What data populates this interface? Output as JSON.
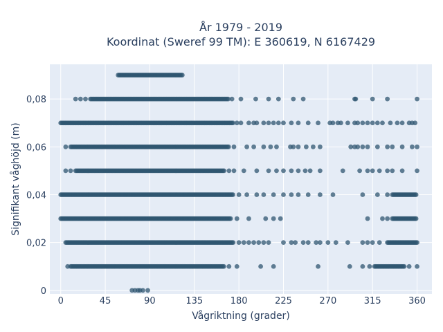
{
  "chart_data": {
    "type": "scatter",
    "title_line1": "År 1979 - 2019",
    "title_line2": "Koordinat (Sweref 99 TM): E 360619, N 6167429",
    "xlabel": "Vågriktning (grader)",
    "ylabel": "Signifikant våghöjd (m)",
    "xlim": [
      -11,
      375
    ],
    "ylim": [
      -0.0015,
      0.0945
    ],
    "x_ticks": [
      0,
      45,
      90,
      135,
      180,
      225,
      270,
      315,
      360
    ],
    "y_ticks": [
      0,
      0.02,
      0.04,
      0.06,
      0.08
    ],
    "y_tick_labels": [
      "0",
      "0,02",
      "0,04",
      "0,06",
      "0,08"
    ],
    "grid": true,
    "marker_color": "#2f5670",
    "bands": [
      {
        "y": 0.09,
        "segments": [
          [
            58,
            123
          ]
        ],
        "scatter": []
      },
      {
        "y": 0.08,
        "segments": [
          [
            30,
            170
          ]
        ],
        "scatter": [
          15,
          20,
          25,
          173,
          182,
          197,
          210,
          220,
          235,
          245,
          297,
          298,
          315,
          330,
          360
        ]
      },
      {
        "y": 0.07,
        "segments": [
          [
            0,
            175
          ]
        ],
        "scatter": [
          178,
          182,
          190,
          195,
          198,
          205,
          210,
          215,
          220,
          225,
          233,
          240,
          250,
          260,
          272,
          275,
          280,
          283,
          290,
          297,
          300,
          305,
          310,
          315,
          320,
          325,
          333,
          340,
          345,
          352,
          355,
          358
        ]
      },
      {
        "y": 0.06,
        "segments": [
          [
            10,
            170
          ]
        ],
        "scatter": [
          5,
          175,
          188,
          195,
          205,
          212,
          218,
          232,
          235,
          240,
          248,
          255,
          262,
          293,
          297,
          300,
          305,
          310,
          320,
          330,
          335,
          345,
          355,
          360
        ]
      },
      {
        "y": 0.05,
        "segments": [
          [
            15,
            165
          ]
        ],
        "scatter": [
          5,
          10,
          170,
          175,
          185,
          198,
          210,
          218,
          225,
          233,
          240,
          247,
          252,
          262,
          285,
          302,
          310,
          315,
          322,
          330,
          335,
          345,
          360
        ]
      },
      {
        "y": 0.04,
        "segments": [
          [
            0,
            175
          ],
          [
            335,
            360
          ]
        ],
        "scatter": [
          180,
          188,
          198,
          205,
          215,
          225,
          233,
          240,
          250,
          262,
          275,
          305,
          320,
          330
        ]
      },
      {
        "y": 0.03,
        "segments": [
          [
            0,
            172
          ],
          [
            335,
            360
          ]
        ],
        "scatter": [
          178,
          190,
          207,
          215,
          222,
          310,
          325,
          330
        ]
      },
      {
        "y": 0.02,
        "segments": [
          [
            5,
            175
          ],
          [
            330,
            360
          ]
        ],
        "scatter": [
          180,
          185,
          190,
          195,
          200,
          205,
          210,
          225,
          233,
          237,
          245,
          250,
          258,
          262,
          270,
          278,
          290,
          305,
          310,
          315,
          322
        ]
      },
      {
        "y": 0.01,
        "segments": [
          [
            10,
            165
          ],
          [
            317,
            347
          ]
        ],
        "scatter": [
          7,
          170,
          178,
          202,
          215,
          260,
          292,
          305,
          312,
          352,
          360
        ]
      },
      {
        "y": 0.0,
        "segments": [],
        "scatter": [
          72,
          75,
          78,
          80,
          83,
          88
        ]
      }
    ]
  }
}
